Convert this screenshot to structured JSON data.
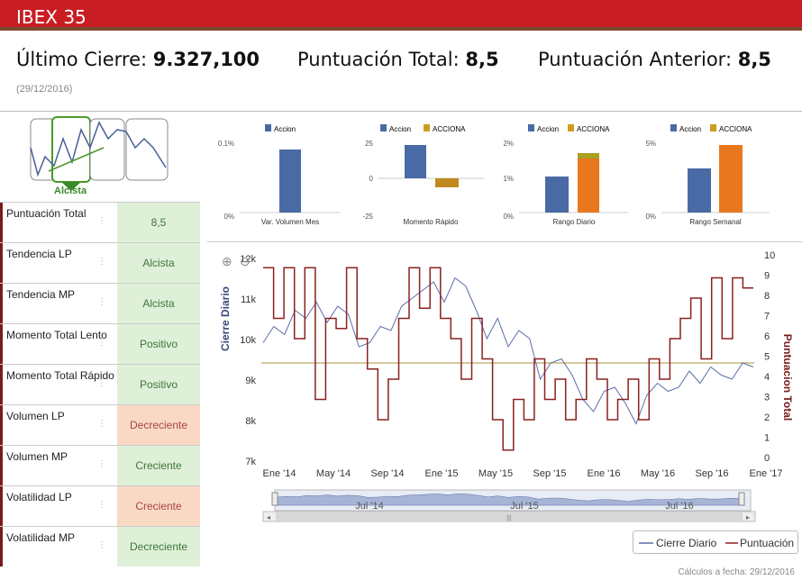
{
  "header": {
    "title": "IBEX 35"
  },
  "stats": {
    "last_close_label": "Último Cierre:",
    "last_close_value": "9.327,100",
    "total_score_label": "Puntuación Total:",
    "total_score_value": "8,5",
    "prev_score_label": "Puntuación Anterior:",
    "prev_score_value": "8,5",
    "date": "(29/12/2016)"
  },
  "trend": {
    "label": "Alcista"
  },
  "rows": [
    {
      "label": "Puntuación Total",
      "value": "8,5",
      "status": "pos"
    },
    {
      "label": "Tendencia LP",
      "value": "Alcista",
      "status": "pos"
    },
    {
      "label": "Tendencia MP",
      "value": "Alcista",
      "status": "pos"
    },
    {
      "label": "Momento Total Lento",
      "value": "Positivo",
      "status": "pos"
    },
    {
      "label": "Momento Total Rápido",
      "value": "Positivo",
      "status": "pos"
    },
    {
      "label": "Volumen LP",
      "value": "Decreciente",
      "status": "neg"
    },
    {
      "label": "Volumen MP",
      "value": "Creciente",
      "status": "pos"
    },
    {
      "label": "Volatilidad LP",
      "value": "Creciente",
      "status": "neg"
    },
    {
      "label": "Volatilidad MP",
      "value": "Decreciente",
      "status": "pos"
    }
  ],
  "chart_data": [
    {
      "type": "bar",
      "xlabel": "Var. Volumen Mes",
      "yticks": [
        "0.1%",
        "0%"
      ],
      "series": [
        {
          "name": "Accion",
          "values": [
            0.09
          ]
        }
      ],
      "color_a": "#4a6aa5"
    },
    {
      "type": "bar",
      "xlabel": "Momento Rápido",
      "yticks": [
        "25",
        "0",
        "-25"
      ],
      "series": [
        {
          "name": "Accion",
          "values": [
            23
          ]
        },
        {
          "name": "ACCIONA",
          "values": [
            -6
          ]
        }
      ]
    },
    {
      "type": "bar",
      "xlabel": "Rango Diario",
      "yticks": [
        "2%",
        "1%",
        "0%"
      ],
      "series": [
        {
          "name": "Accion",
          "values": [
            1.2
          ]
        },
        {
          "name": "ACCIONA",
          "values": [
            1.8
          ]
        }
      ]
    },
    {
      "type": "bar",
      "xlabel": "Rango Semanal",
      "yticks": [
        "5%",
        "0%"
      ],
      "series": [
        {
          "name": "Accion",
          "values": [
            3.3
          ]
        },
        {
          "name": "ACCIONA",
          "values": [
            5.0
          ]
        }
      ]
    },
    {
      "type": "line",
      "ylabel": "Cierre Diario",
      "y2label": "Puntuacion Total",
      "yticks": [
        "12k",
        "11k",
        "10k",
        "9k",
        "8k",
        "7k"
      ],
      "y2ticks": [
        "10",
        "9",
        "8",
        "7",
        "6",
        "5",
        "4",
        "3",
        "2",
        "1",
        "0"
      ],
      "xticks": [
        "Ene '14",
        "May '14",
        "Sep '14",
        "Ene '15",
        "May '15",
        "Sep '15",
        "Ene '16",
        "May '16",
        "Sep '16",
        "Ene '17"
      ],
      "navigator_ticks": [
        "Jul '14",
        "Jul '15",
        "Jul '16"
      ],
      "series": [
        {
          "name": "Cierre Diario",
          "values": [
            9900,
            10300,
            10100,
            10700,
            10500,
            10900,
            10400,
            10800,
            10600,
            9800,
            9900,
            10300,
            10200,
            10800,
            11000,
            11200,
            11400,
            10900,
            11500,
            11300,
            10700,
            10000,
            10500,
            9800,
            10200,
            10000,
            9000,
            9400,
            9500,
            9100,
            8500,
            8200,
            8700,
            8800,
            8400,
            7900,
            8600,
            8900,
            8700,
            8800,
            9200,
            8900,
            9300,
            9100,
            9000,
            9400,
            9300
          ]
        },
        {
          "name": "Puntuación",
          "values": [
            9.5,
            7,
            9.5,
            6,
            9.5,
            3,
            7,
            6.5,
            9.5,
            6,
            4.5,
            2,
            4,
            7,
            9.5,
            7.5,
            9.5,
            7,
            6,
            4,
            7,
            5,
            2,
            0.5,
            3,
            2,
            5,
            3,
            4,
            2,
            3,
            5,
            4,
            2,
            3,
            4,
            2,
            5,
            4,
            6,
            7,
            8,
            5,
            9,
            6,
            9,
            8.5
          ]
        }
      ]
    }
  ],
  "legend": {
    "item1": "Cierre Diario",
    "item2": "Puntuación"
  },
  "footer": "Cálculos a fecha: 29/12/2016"
}
